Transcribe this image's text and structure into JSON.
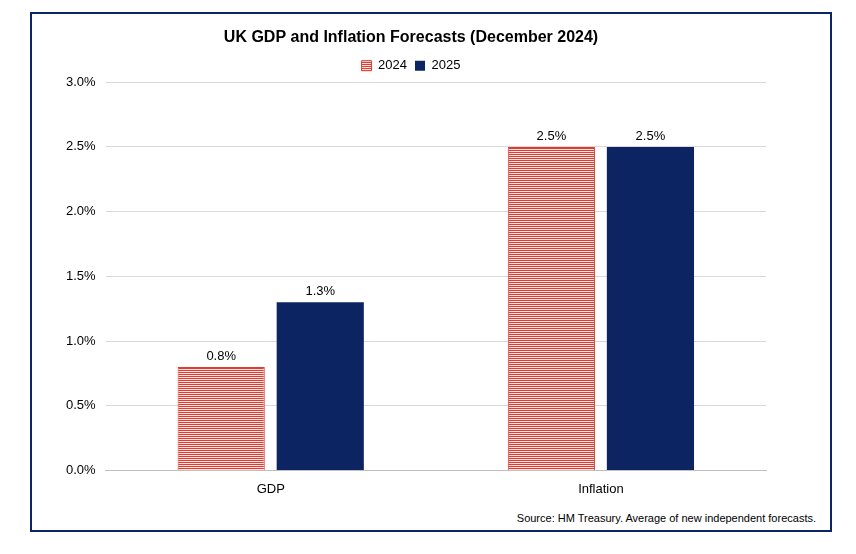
{
  "chart_data": {
    "type": "bar",
    "title": "UK GDP and Inflation Forecasts (December 2024)",
    "categories": [
      "GDP",
      "Inflation"
    ],
    "series": [
      {
        "name": "2024",
        "color": "#e03c31",
        "values": [
          0.8,
          2.5
        ],
        "value_labels": [
          "0.8%",
          "2.5%"
        ]
      },
      {
        "name": "2025",
        "color": "#0c2461",
        "values": [
          1.3,
          2.5
        ],
        "value_labels": [
          "1.3%",
          "2.5%"
        ]
      }
    ],
    "ylim": [
      0,
      3
    ],
    "yticks": [
      {
        "value": 0,
        "label": "0.0%"
      },
      {
        "value": 0.5,
        "label": "0.5%"
      },
      {
        "value": 1,
        "label": "1.0%"
      },
      {
        "value": 1.5,
        "label": "1.5%"
      },
      {
        "value": 2,
        "label": "2.0%"
      },
      {
        "value": 2.5,
        "label": "2.5%"
      },
      {
        "value": 3,
        "label": "3.0%"
      }
    ],
    "grid": true,
    "legend": "top",
    "data_labels": true,
    "annotations": [
      "Source: HM Treasury. Average of new independent forecasts."
    ]
  }
}
